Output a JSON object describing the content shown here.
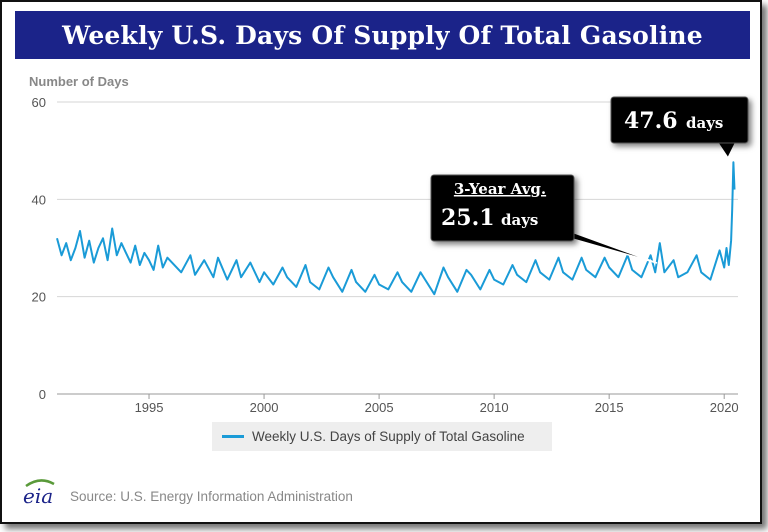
{
  "title": "Weekly U.S. Days Of Supply Of Total Gasoline",
  "source": "Source: U.S. Energy Information Administration",
  "logo_text": "eia",
  "colors": {
    "banner": "#1b2389",
    "line": "#1a9bd7",
    "logo_green": "#5a9a3a"
  },
  "annotations": {
    "peak": {
      "value": "47.6",
      "unit": "days"
    },
    "average": {
      "heading": "3-Year Avg.",
      "value": "25.1",
      "unit": "days"
    }
  },
  "chart_data": {
    "type": "line",
    "title": "Weekly U.S. Days Of Supply Of Total Gasoline",
    "ylabel": "Number of Days",
    "xlabel": "",
    "xlim": [
      1991,
      2020.6
    ],
    "ylim": [
      0,
      60
    ],
    "yticks": [
      0,
      20,
      40,
      60
    ],
    "xticks": [
      1995,
      2000,
      2005,
      2010,
      2015,
      2020
    ],
    "grid": true,
    "legend_position": "bottom",
    "series": [
      {
        "name": "Weekly U.S. Days of Supply of Total Gasoline",
        "x": [
          1991.0,
          1991.2,
          1991.4,
          1991.6,
          1991.8,
          1992.0,
          1992.2,
          1992.4,
          1992.6,
          1992.8,
          1993.0,
          1993.2,
          1993.4,
          1993.6,
          1993.8,
          1994.0,
          1994.2,
          1994.4,
          1994.6,
          1994.8,
          1995.0,
          1995.2,
          1995.4,
          1995.6,
          1995.8,
          1996.0,
          1996.4,
          1996.8,
          1997.0,
          1997.4,
          1997.8,
          1998.0,
          1998.4,
          1998.8,
          1999.0,
          1999.4,
          1999.8,
          2000.0,
          2000.4,
          2000.8,
          2001.0,
          2001.4,
          2001.8,
          2002.0,
          2002.4,
          2002.8,
          2003.0,
          2003.4,
          2003.8,
          2004.0,
          2004.4,
          2004.8,
          2005.0,
          2005.4,
          2005.8,
          2006.0,
          2006.4,
          2006.8,
          2007.0,
          2007.4,
          2007.8,
          2008.0,
          2008.4,
          2008.8,
          2009.0,
          2009.4,
          2009.8,
          2010.0,
          2010.4,
          2010.8,
          2011.0,
          2011.4,
          2011.8,
          2012.0,
          2012.4,
          2012.8,
          2013.0,
          2013.4,
          2013.8,
          2014.0,
          2014.4,
          2014.8,
          2015.0,
          2015.4,
          2015.8,
          2016.0,
          2016.4,
          2016.8,
          2017.0,
          2017.2,
          2017.4,
          2017.8,
          2018.0,
          2018.4,
          2018.8,
          2019.0,
          2019.4,
          2019.8,
          2020.0,
          2020.1,
          2020.2,
          2020.3,
          2020.35,
          2020.4,
          2020.45
        ],
        "values": [
          32.0,
          28.5,
          31.0,
          27.5,
          30.0,
          33.5,
          28.0,
          31.5,
          27.0,
          30.0,
          32.0,
          27.5,
          34.0,
          28.5,
          31.0,
          29.0,
          27.0,
          30.5,
          26.5,
          29.0,
          27.5,
          25.5,
          30.5,
          26.0,
          28.0,
          27.0,
          25.0,
          28.5,
          24.5,
          27.5,
          24.0,
          28.0,
          23.5,
          27.5,
          24.0,
          27.0,
          23.0,
          25.0,
          22.5,
          26.0,
          24.0,
          22.0,
          26.5,
          23.0,
          21.5,
          26.0,
          24.0,
          21.0,
          25.5,
          23.0,
          21.0,
          24.5,
          22.5,
          21.5,
          25.0,
          23.0,
          21.0,
          25.0,
          23.5,
          20.5,
          26.0,
          24.0,
          21.0,
          25.5,
          24.5,
          21.5,
          25.5,
          23.5,
          22.5,
          26.5,
          24.5,
          23.0,
          27.5,
          25.0,
          23.5,
          28.0,
          25.0,
          23.5,
          28.0,
          25.5,
          24.0,
          28.0,
          26.0,
          24.0,
          28.5,
          25.5,
          24.0,
          28.5,
          25.0,
          31.0,
          25.0,
          27.5,
          24.0,
          25.0,
          28.5,
          25.0,
          23.5,
          29.5,
          26.0,
          30.0,
          26.5,
          31.5,
          38.0,
          47.6,
          42.0
        ]
      }
    ]
  }
}
